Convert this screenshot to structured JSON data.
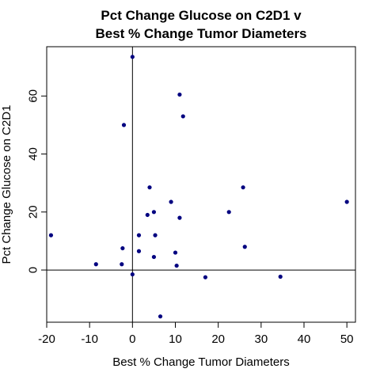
{
  "chart_data": {
    "type": "scatter",
    "title": [
      "Pct Change Glucose on C2D1 v",
      "Best % Change Tumor Diameters"
    ],
    "xlabel": "Best % Change Tumor Diameters",
    "ylabel": "Pct Change Glucose on C2D1",
    "xlim": [
      -20,
      52
    ],
    "ylim": [
      -18,
      77
    ],
    "xticks": [
      -20,
      -10,
      0,
      10,
      20,
      30,
      40,
      50
    ],
    "yticks": [
      0,
      20,
      40,
      60
    ],
    "reference_lines": {
      "x": 0,
      "y": 0
    },
    "point_color": "#000080",
    "grid": false,
    "legend": "none",
    "points": [
      {
        "x": -19,
        "y": 12
      },
      {
        "x": -8.5,
        "y": 2
      },
      {
        "x": -2.5,
        "y": 2
      },
      {
        "x": -2.3,
        "y": 7.5
      },
      {
        "x": -2,
        "y": 50
      },
      {
        "x": 0,
        "y": 73.5
      },
      {
        "x": 0,
        "y": -1.5
      },
      {
        "x": 1.5,
        "y": 6.5
      },
      {
        "x": 1.5,
        "y": 12
      },
      {
        "x": 3.5,
        "y": 19
      },
      {
        "x": 4,
        "y": 28.5
      },
      {
        "x": 5,
        "y": 20
      },
      {
        "x": 5.3,
        "y": 12
      },
      {
        "x": 5,
        "y": 4.5
      },
      {
        "x": 6.5,
        "y": -16
      },
      {
        "x": 9,
        "y": 23.5
      },
      {
        "x": 10,
        "y": 6
      },
      {
        "x": 10.3,
        "y": 1.5
      },
      {
        "x": 11,
        "y": 18
      },
      {
        "x": 11,
        "y": 60.5
      },
      {
        "x": 11.8,
        "y": 53
      },
      {
        "x": 17,
        "y": -2.5
      },
      {
        "x": 22.5,
        "y": 20
      },
      {
        "x": 25.8,
        "y": 28.5
      },
      {
        "x": 26.2,
        "y": 8
      },
      {
        "x": 34.5,
        "y": -2.3
      },
      {
        "x": 50,
        "y": 23.5
      }
    ]
  }
}
